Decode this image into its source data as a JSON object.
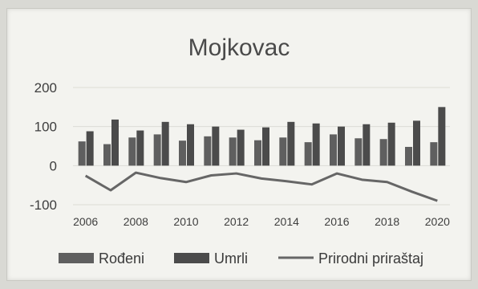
{
  "chart_data": {
    "type": "bar",
    "title": "Mojkovac",
    "xlabel": "",
    "ylabel": "",
    "ylim": [
      -100,
      200
    ],
    "yticks": [
      "200",
      "100",
      "0",
      "-100"
    ],
    "ytick_values": [
      200,
      100,
      0,
      -100
    ],
    "categories": [
      "2006",
      "2007",
      "2008",
      "2009",
      "2010",
      "2011",
      "2012",
      "2013",
      "2014",
      "2015",
      "2016",
      "2017",
      "2018",
      "2019",
      "2020"
    ],
    "x_tick_labels": [
      "2006",
      "2008",
      "2010",
      "2012",
      "2014",
      "2016",
      "2018",
      "2020"
    ],
    "series": [
      {
        "name": "Rođeni",
        "type": "bar",
        "color": "#5f5f5f",
        "values": [
          62,
          55,
          72,
          80,
          64,
          75,
          72,
          65,
          72,
          60,
          80,
          70,
          68,
          48,
          60
        ]
      },
      {
        "name": "Umrli",
        "type": "bar",
        "color": "#4b4b4b",
        "values": [
          88,
          118,
          90,
          112,
          106,
          100,
          92,
          98,
          112,
          108,
          100,
          106,
          110,
          115,
          150
        ]
      },
      {
        "name": "Prirodni priraštaj",
        "type": "line",
        "color": "#666666",
        "values": [
          -26,
          -63,
          -18,
          -32,
          -42,
          -25,
          -20,
          -33,
          -40,
          -48,
          -20,
          -36,
          -42,
          -67,
          -90
        ]
      }
    ],
    "legend": "bottom",
    "grid": true
  }
}
